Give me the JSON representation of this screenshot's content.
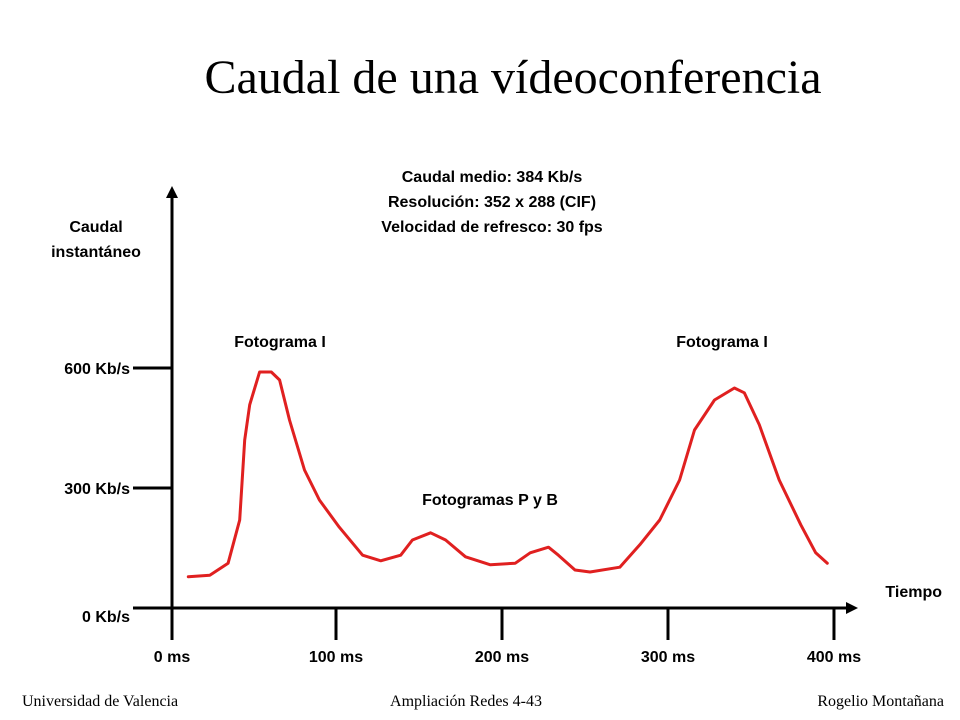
{
  "chart_data": {
    "type": "line",
    "title": "Caudal de una vídeoconferencia",
    "annotations": [
      "Caudal medio: 384 Kb/s",
      "Resolución: 352 x 288 (CIF)",
      "Velocidad de refresco: 30 fps",
      "Fotograma I",
      "Fotogramas P y B",
      "Fotograma I"
    ],
    "y_label": [
      "Caudal",
      "instantáneo"
    ],
    "x_label": "Tiempo",
    "xlim": [
      0,
      407
    ],
    "ylim": [
      0,
      1050
    ],
    "xticks": [
      {
        "value": 0,
        "label": "0 ms"
      },
      {
        "value": 100,
        "label": "100 ms"
      },
      {
        "value": 200,
        "label": "200 ms"
      },
      {
        "value": 300,
        "label": "300 ms"
      },
      {
        "value": 400,
        "label": "400 ms"
      }
    ],
    "yticks": [
      {
        "value": 0,
        "label": "0 Kb/s"
      },
      {
        "value": 300,
        "label": "300 Kb/s"
      },
      {
        "value": 600,
        "label": "600 Kb/s"
      }
    ],
    "series": [
      {
        "color": "#e02020",
        "x": [
          11,
          24,
          35,
          42,
          45,
          48,
          54,
          61,
          66,
          72,
          81,
          90,
          102,
          116,
          127,
          139,
          146,
          157,
          166,
          178,
          193,
          208,
          217,
          228,
          234,
          244,
          253,
          271,
          283,
          295,
          307,
          316,
          328,
          340,
          346,
          355,
          367,
          380,
          389,
          396
        ],
        "values": [
          78,
          82,
          112,
          220,
          420,
          508,
          590,
          590,
          570,
          470,
          345,
          270,
          202,
          132,
          118,
          132,
          170,
          188,
          170,
          128,
          108,
          112,
          138,
          152,
          132,
          95,
          90,
          102,
          158,
          220,
          320,
          445,
          520,
          550,
          538,
          458,
          320,
          208,
          138,
          112
        ]
      }
    ]
  },
  "footer": {
    "left": "Universidad de Valencia",
    "center": "Ampliación Redes 4-43",
    "right": "Rogelio Montañana"
  }
}
